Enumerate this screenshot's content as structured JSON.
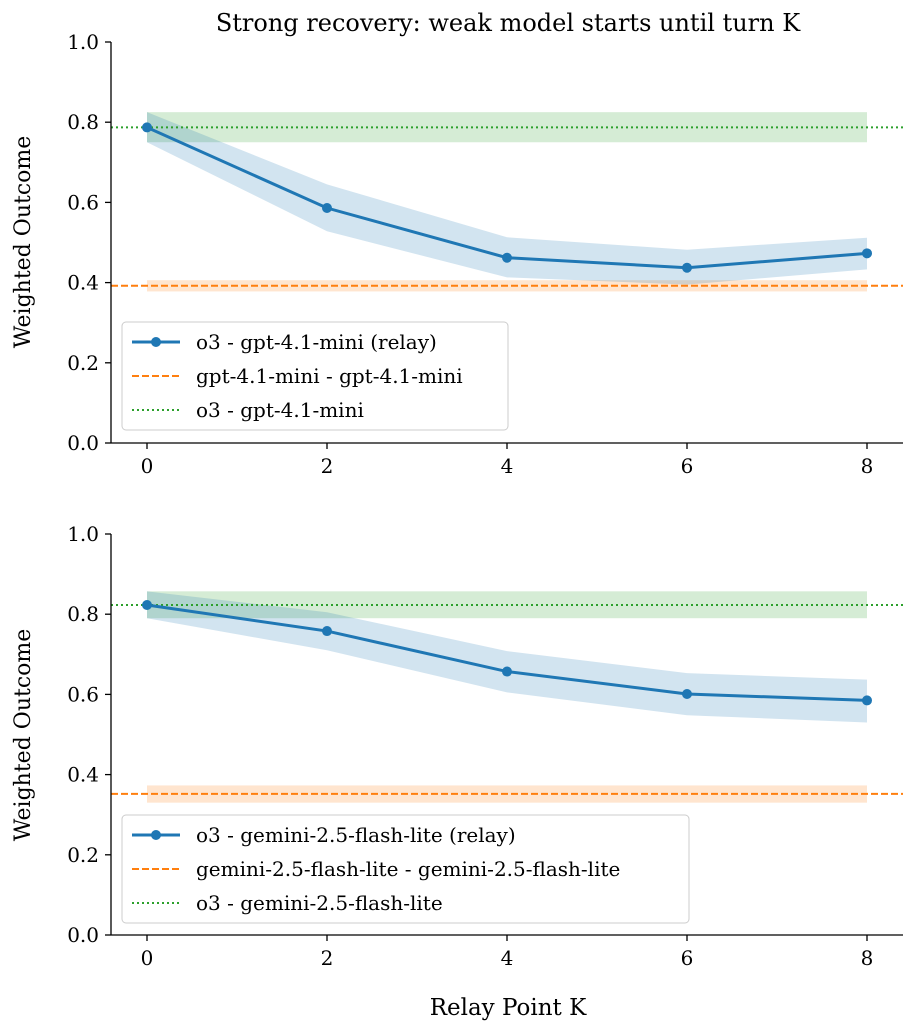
{
  "figure": {
    "suptitle": "Strong recovery: weak model starts until turn K",
    "xlabel": "Relay Point K"
  },
  "colors": {
    "relay": "#1f77b4",
    "weak": "#ff7f0e",
    "strong": "#2ca02c",
    "relay_band": "#1f77b4",
    "weak_band": "#ff7f0e",
    "strong_band": "#2ca02c"
  },
  "chart_data": [
    {
      "type": "line",
      "title": "",
      "xlabel": "",
      "ylabel": "Weighted Outcome",
      "x": [
        0,
        2,
        4,
        6,
        8
      ],
      "xticks": [
        "0",
        "2",
        "4",
        "6",
        "8"
      ],
      "yticks": [
        "0.0",
        "0.2",
        "0.4",
        "0.6",
        "0.8",
        "1.0"
      ],
      "xlim": [
        -0.4,
        8.4
      ],
      "ylim": [
        0.0,
        1.0
      ],
      "legend_position": "lower-left",
      "series": [
        {
          "name": "o3 - gpt-4.1-mini (relay)",
          "style": "solid-marker",
          "values": [
            0.787,
            0.586,
            0.462,
            0.437,
            0.473
          ],
          "lower": [
            0.75,
            0.528,
            0.413,
            0.395,
            0.433
          ],
          "upper": [
            0.825,
            0.645,
            0.513,
            0.482,
            0.512
          ]
        },
        {
          "name": "gpt-4.1-mini - gpt-4.1-mini",
          "style": "dashed",
          "level": 0.392,
          "lower": 0.378,
          "upper": 0.406
        },
        {
          "name": "o3 - gpt-4.1-mini",
          "style": "dotted",
          "level": 0.787,
          "lower": 0.75,
          "upper": 0.825
        }
      ]
    },
    {
      "type": "line",
      "title": "",
      "xlabel": "Relay Point K",
      "ylabel": "Weighted Outcome",
      "x": [
        0,
        2,
        4,
        6,
        8
      ],
      "xticks": [
        "0",
        "2",
        "4",
        "6",
        "8"
      ],
      "yticks": [
        "0.0",
        "0.2",
        "0.4",
        "0.6",
        "0.8",
        "1.0"
      ],
      "xlim": [
        -0.4,
        8.4
      ],
      "ylim": [
        0.0,
        1.0
      ],
      "legend_position": "lower-left",
      "series": [
        {
          "name": "o3 - gemini-2.5-flash-lite (relay)",
          "style": "solid-marker",
          "values": [
            0.823,
            0.758,
            0.657,
            0.601,
            0.585
          ],
          "lower": [
            0.79,
            0.71,
            0.605,
            0.548,
            0.53
          ],
          "upper": [
            0.857,
            0.805,
            0.708,
            0.653,
            0.637
          ]
        },
        {
          "name": "gemini-2.5-flash-lite - gemini-2.5-flash-lite",
          "style": "dashed",
          "level": 0.352,
          "lower": 0.33,
          "upper": 0.373
        },
        {
          "name": "o3 - gemini-2.5-flash-lite",
          "style": "dotted",
          "level": 0.823,
          "lower": 0.79,
          "upper": 0.857
        }
      ]
    }
  ]
}
